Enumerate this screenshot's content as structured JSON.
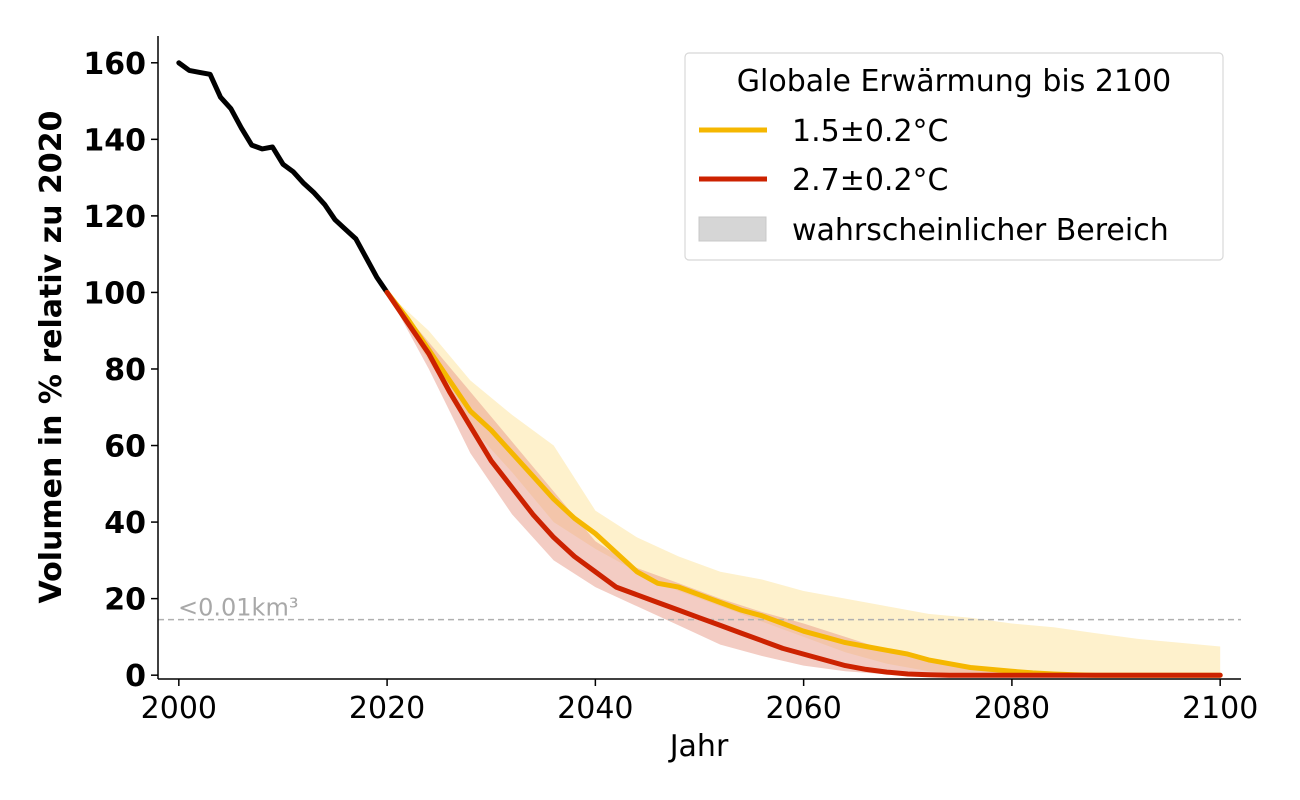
{
  "chart_data": {
    "type": "line",
    "xlabel": "Jahr",
    "ylabel": "Volumen in % relativ zu 2020",
    "xlim": [
      1998,
      2102
    ],
    "ylim": [
      -1,
      167
    ],
    "x_ticks": [
      2000,
      2020,
      2040,
      2060,
      2080,
      2100
    ],
    "y_ticks": [
      0,
      20,
      40,
      60,
      80,
      100,
      120,
      140,
      160
    ],
    "grid": false,
    "legend": {
      "title": "Globale Erwärmung bis 2100",
      "placement": "top-right",
      "entries": [
        "1.5±0.2°C",
        "2.7±0.2°C",
        "wahrscheinlicher Bereich"
      ]
    },
    "threshold": {
      "y": 14.5,
      "label": "<0.01km³",
      "color": "#b0b0b0"
    },
    "colors": {
      "historical": "#000000",
      "scenario_15": "#f5b700",
      "scenario_27": "#cc2200",
      "band_15": "#fde9b0",
      "band_27": "#e89a88",
      "legend_band": "#d6d6d6"
    },
    "series": [
      {
        "key": "historical",
        "x": [
          2000,
          2001,
          2002,
          2003,
          2004,
          2005,
          2006,
          2007,
          2008,
          2009,
          2010,
          2011,
          2012,
          2013,
          2014,
          2015,
          2016,
          2017,
          2018,
          2019,
          2020
        ],
        "y": [
          160,
          158,
          157.5,
          157,
          151,
          148,
          143,
          138.5,
          137.5,
          138,
          133.5,
          131.5,
          128.5,
          126,
          123,
          119,
          116.5,
          114,
          109,
          104,
          100
        ]
      },
      {
        "key": "scenario_15",
        "name": "1.5±0.2°C",
        "x": [
          2020,
          2022,
          2024,
          2026,
          2028,
          2030,
          2032,
          2034,
          2036,
          2038,
          2040,
          2042,
          2044,
          2046,
          2048,
          2050,
          2052,
          2054,
          2056,
          2058,
          2060,
          2062,
          2064,
          2066,
          2068,
          2070,
          2072,
          2074,
          2076,
          2078,
          2080,
          2082,
          2084,
          2086,
          2088,
          2090,
          2100
        ],
        "y": [
          100,
          93,
          85,
          77,
          69,
          64,
          58,
          52,
          46,
          41,
          37,
          32,
          27,
          24,
          23,
          21,
          19,
          17,
          15.5,
          13.5,
          11.5,
          10,
          8.5,
          7.5,
          6.5,
          5.5,
          4,
          3,
          2,
          1.5,
          1,
          0.6,
          0.3,
          0.1,
          0,
          0,
          0
        ]
      },
      {
        "key": "scenario_27",
        "name": "2.7±0.2°C",
        "x": [
          2020,
          2022,
          2024,
          2026,
          2028,
          2030,
          2032,
          2034,
          2036,
          2038,
          2040,
          2042,
          2044,
          2046,
          2048,
          2050,
          2052,
          2054,
          2056,
          2058,
          2060,
          2062,
          2064,
          2066,
          2068,
          2070,
          2072,
          2074,
          2080,
          2090,
          2100
        ],
        "y": [
          100,
          92,
          84,
          74,
          65,
          56,
          49,
          42,
          36,
          31,
          27,
          23,
          21,
          19,
          17,
          15,
          13,
          11,
          9,
          7,
          5.5,
          4,
          2.5,
          1.5,
          0.8,
          0.3,
          0.1,
          0,
          0,
          0,
          0
        ]
      }
    ],
    "bands": [
      {
        "key": "band_15",
        "x": [
          2020,
          2024,
          2028,
          2032,
          2036,
          2040,
          2044,
          2048,
          2052,
          2056,
          2060,
          2064,
          2068,
          2072,
          2076,
          2080,
          2084,
          2088,
          2092,
          2096,
          2100
        ],
        "upper": [
          100,
          90,
          77,
          68,
          60,
          43,
          36,
          31,
          27,
          25,
          22,
          20,
          18,
          16,
          15,
          13.5,
          12.5,
          11,
          9.5,
          8.5,
          7.5
        ],
        "lower": [
          100,
          82,
          65,
          53,
          40,
          33,
          27,
          22,
          18,
          14,
          10,
          6,
          3,
          1,
          0,
          0,
          0,
          0,
          0,
          0,
          0
        ]
      },
      {
        "key": "band_27",
        "x": [
          2020,
          2024,
          2028,
          2032,
          2036,
          2040,
          2044,
          2048,
          2052,
          2056,
          2060,
          2064,
          2068,
          2072,
          2076,
          2080,
          2090,
          2100
        ],
        "upper": [
          100,
          87,
          74,
          61,
          48,
          35,
          28,
          24,
          20,
          16.5,
          13.5,
          10,
          6.5,
          3.5,
          1.5,
          0.5,
          0,
          0
        ],
        "lower": [
          100,
          80,
          58,
          42,
          30,
          23,
          18,
          13,
          8,
          5,
          2.5,
          1,
          0.2,
          0,
          0,
          0,
          0,
          0
        ]
      }
    ]
  }
}
